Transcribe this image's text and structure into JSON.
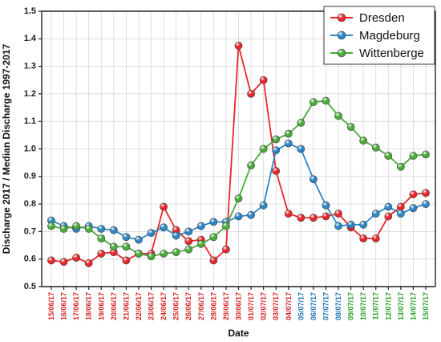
{
  "chart_data": {
    "type": "line",
    "xlabel": "Date",
    "ylabel": "Discharge 2017 / Median Discharge 1997-2017",
    "ylim": [
      0.5,
      1.5
    ],
    "yticks": [
      "0.5",
      "0.6",
      "0.7",
      "0.8",
      "0.9",
      "1.0",
      "1.1",
      "1.2",
      "1.3",
      "1.4",
      "1.5"
    ],
    "grid": true,
    "legend_position": "top-right",
    "categories": [
      "15/06/17",
      "16/06/17",
      "17/06/17",
      "18/06/17",
      "19/06/17",
      "20/06/17",
      "21/06/17",
      "22/06/17",
      "23/06/17",
      "24/06/17",
      "25/06/17",
      "26/06/17",
      "27/06/17",
      "28/06/17",
      "29/06/17",
      "30/06/17",
      "01/07/17",
      "02/07/17",
      "03/07/17",
      "04/07/17",
      "05/07/17",
      "06/07/17",
      "07/07/17",
      "08/07/17",
      "09/07/17",
      "10/07/17",
      "11/07/17",
      "12/07/17",
      "13/07/17",
      "14/07/17",
      "15/07/17"
    ],
    "category_colors": [
      "#d62728",
      "#d62728",
      "#d62728",
      "#d62728",
      "#d62728",
      "#d62728",
      "#d62728",
      "#d62728",
      "#d62728",
      "#d62728",
      "#d62728",
      "#d62728",
      "#d62728",
      "#d62728",
      "#d62728",
      "#d62728",
      "#d62728",
      "#d62728",
      "#d62728",
      "#d62728",
      "#1f77b4",
      "#1f77b4",
      "#1f77b4",
      "#1f77b4",
      "#2ca02c",
      "#2ca02c",
      "#2ca02c",
      "#2ca02c",
      "#2ca02c",
      "#2ca02c",
      "#2ca02c"
    ],
    "series": [
      {
        "name": "Dresden",
        "color": "#e8262b",
        "values": [
          0.595,
          0.59,
          0.605,
          0.585,
          0.62,
          0.625,
          0.595,
          0.62,
          0.62,
          0.79,
          0.705,
          0.665,
          0.67,
          0.595,
          0.635,
          1.375,
          1.2,
          1.25,
          0.92,
          0.765,
          0.75,
          0.75,
          0.755,
          0.765,
          0.715,
          0.675,
          0.675,
          0.755,
          0.79,
          0.835,
          0.84
        ]
      },
      {
        "name": "Magdeburg",
        "color": "#2c86c6",
        "values": [
          0.74,
          0.72,
          0.71,
          0.72,
          0.71,
          0.705,
          0.68,
          0.67,
          0.695,
          0.715,
          0.685,
          0.7,
          0.72,
          0.735,
          0.735,
          0.755,
          0.76,
          0.795,
          0.995,
          1.02,
          1.0,
          0.89,
          0.795,
          0.72,
          0.725,
          0.725,
          0.765,
          0.79,
          0.765,
          0.785,
          0.8
        ]
      },
      {
        "name": "Wittenberge",
        "color": "#4aaa3a",
        "values": [
          0.72,
          0.71,
          0.72,
          0.71,
          0.675,
          0.645,
          0.645,
          0.62,
          0.61,
          0.62,
          0.625,
          0.635,
          0.655,
          0.68,
          0.72,
          0.82,
          0.94,
          1.0,
          1.035,
          1.055,
          1.095,
          1.17,
          1.175,
          1.12,
          1.08,
          1.03,
          1.005,
          0.975,
          0.935,
          0.975,
          0.98
        ]
      }
    ]
  }
}
